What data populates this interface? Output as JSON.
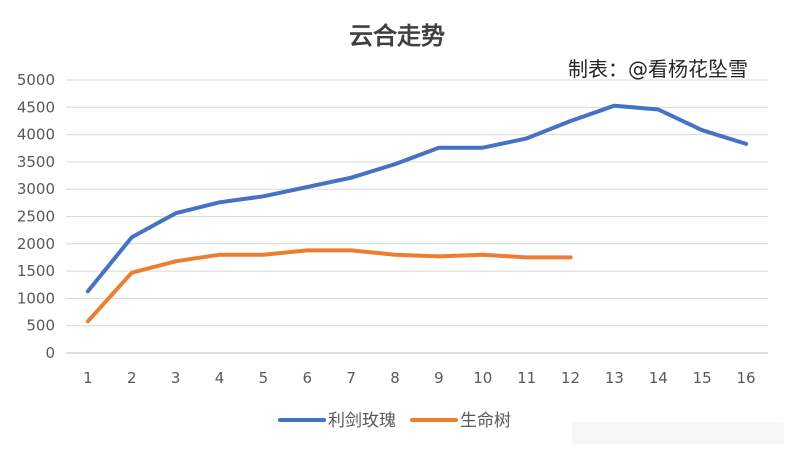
{
  "chart_data": {
    "type": "line",
    "title": "云合走势",
    "annotation": "制表：@看杨花坠雪",
    "x": [
      1,
      2,
      3,
      4,
      5,
      6,
      7,
      8,
      9,
      10,
      11,
      12,
      13,
      14,
      15,
      16
    ],
    "ylim": [
      0,
      5000
    ],
    "yticks": [
      0,
      500,
      1000,
      1500,
      2000,
      2500,
      3000,
      3500,
      4000,
      4500,
      5000
    ],
    "grid": true,
    "legend_position": "bottom",
    "series": [
      {
        "name": "利剑玫瑰",
        "color": "#4472c4",
        "values": [
          1130,
          2120,
          2560,
          2760,
          2870,
          3040,
          3210,
          3460,
          3760,
          3760,
          3930,
          4250,
          4530,
          4460,
          4080,
          3830
        ]
      },
      {
        "name": "生命树",
        "color": "#ed7d31",
        "values": [
          580,
          1470,
          1680,
          1800,
          1800,
          1880,
          1880,
          1800,
          1770,
          1800,
          1750,
          1750,
          null,
          null,
          null,
          null
        ]
      }
    ]
  }
}
